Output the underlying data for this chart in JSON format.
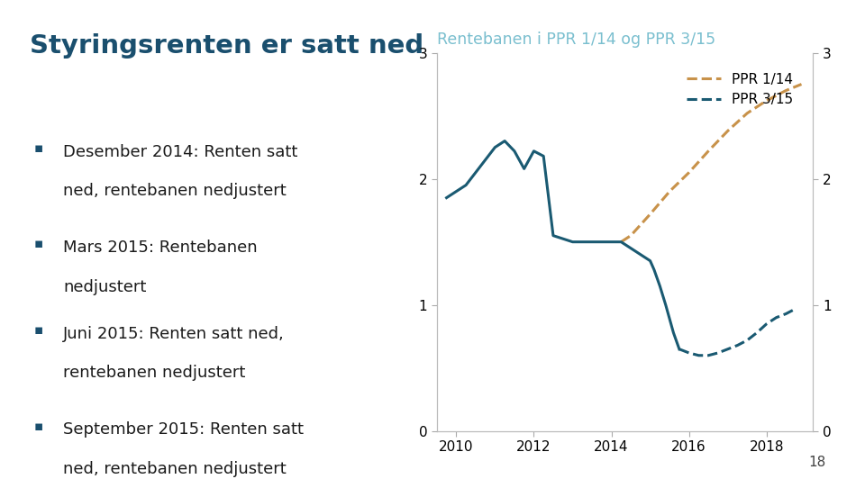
{
  "title": "Styringsrenten er satt ned",
  "chart_title": "Rentebanen i PPR 1/14 og PPR 3/15",
  "chart_title_color": "#7abfcf",
  "bullet_points": [
    [
      "Desember 2014: Renten satt",
      "ned, rentebanen nedjustert"
    ],
    [
      "Mars 2015: Rentebanen",
      "nedjustert"
    ],
    [
      "Juni 2015: Renten satt ned,",
      "rentebanen nedjustert"
    ],
    [
      "September 2015: Renten satt",
      "ned, rentebanen nedjustert"
    ]
  ],
  "bullet_color": "#1a4f6e",
  "text_color": "#1a1a1a",
  "ppr114_color": "#c8924a",
  "ppr315_color": "#1a5a72",
  "ylim": [
    0,
    3
  ],
  "yticks": [
    0,
    1,
    2,
    3
  ],
  "xlim": [
    2009.5,
    2019.2
  ],
  "xticks": [
    2010,
    2012,
    2014,
    2016,
    2018
  ],
  "ppr114_x": [
    2014.25,
    2014.5,
    2015.0,
    2015.5,
    2016.0,
    2016.5,
    2017.0,
    2017.5,
    2018.0,
    2018.5,
    2018.9
  ],
  "ppr114_y": [
    1.5,
    1.55,
    1.72,
    1.9,
    2.05,
    2.22,
    2.38,
    2.52,
    2.62,
    2.7,
    2.75
  ],
  "ppr315_solid_x": [
    2009.75,
    2010.0,
    2010.25,
    2010.5,
    2010.75,
    2011.0,
    2011.25,
    2011.5,
    2011.75,
    2012.0,
    2012.25,
    2012.5,
    2013.0,
    2013.5,
    2014.0,
    2014.25,
    2014.5,
    2014.75,
    2015.0,
    2015.1,
    2015.25,
    2015.4,
    2015.6,
    2015.75
  ],
  "ppr315_solid_y": [
    1.85,
    1.9,
    1.95,
    2.05,
    2.15,
    2.25,
    2.3,
    2.22,
    2.08,
    2.22,
    2.18,
    1.55,
    1.5,
    1.5,
    1.5,
    1.5,
    1.45,
    1.4,
    1.35,
    1.28,
    1.15,
    1.0,
    0.78,
    0.65
  ],
  "ppr315_dashed_x": [
    2015.75,
    2016.0,
    2016.25,
    2016.5,
    2016.75,
    2017.0,
    2017.25,
    2017.5,
    2017.75,
    2018.0,
    2018.25,
    2018.5,
    2018.75
  ],
  "ppr315_dashed_y": [
    0.65,
    0.62,
    0.6,
    0.6,
    0.62,
    0.65,
    0.68,
    0.72,
    0.78,
    0.85,
    0.9,
    0.93,
    0.97
  ],
  "background_color": "#ffffff",
  "tick_fontsize": 11,
  "legend_fontsize": 11,
  "page_number": "18",
  "nb_logo_color": "#1a5a72"
}
